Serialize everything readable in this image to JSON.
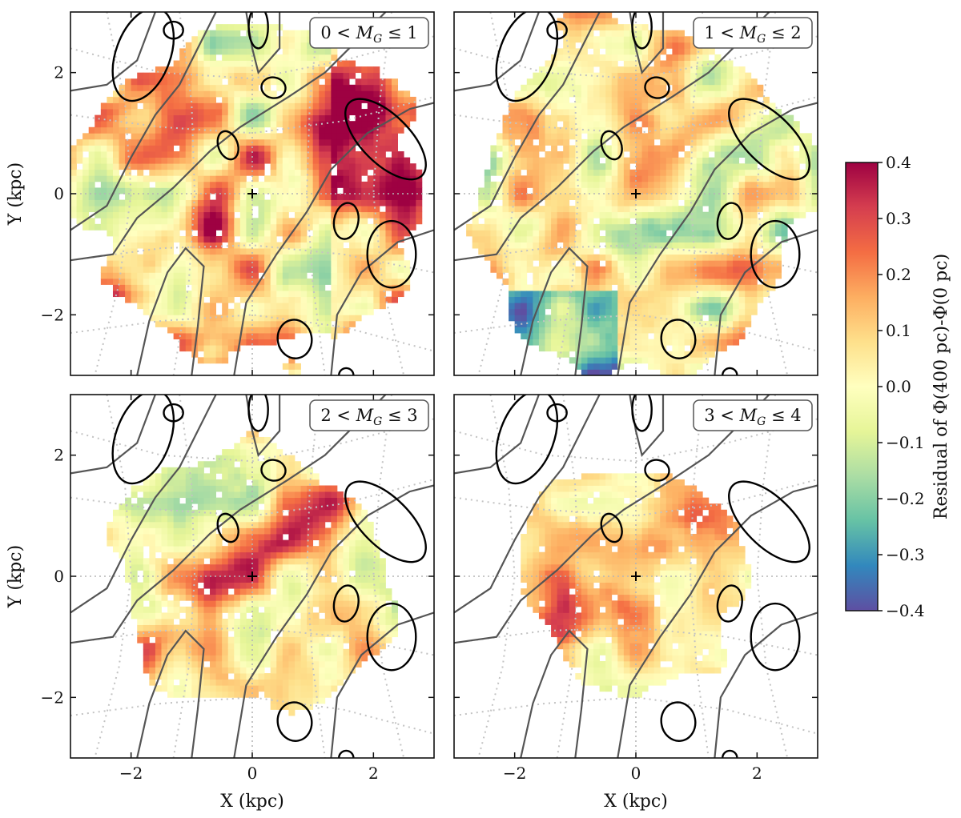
{
  "chart_data": {
    "type": "heatmap",
    "panels": [
      {
        "id": "p1",
        "label_left": "0 < ",
        "label_mid": "M",
        "label_sub": "G",
        "label_right": " ≤ 1"
      },
      {
        "id": "p2",
        "label_left": "1 < ",
        "label_mid": "M",
        "label_sub": "G",
        "label_right": " ≤ 2"
      },
      {
        "id": "p3",
        "label_left": "2 < ",
        "label_mid": "M",
        "label_sub": "G",
        "label_right": " ≤ 3"
      },
      {
        "id": "p4",
        "label_left": "3 < ",
        "label_mid": "M",
        "label_sub": "G",
        "label_right": " ≤ 4"
      }
    ],
    "xlabel": "X (kpc)",
    "ylabel": "Y (kpc)",
    "xlim": [
      -3,
      3
    ],
    "ylim": [
      -3,
      3
    ],
    "xticks": [
      -2,
      0,
      2
    ],
    "yticks": [
      -2,
      0,
      2
    ],
    "xtick_labels": [
      "−2",
      "0",
      "2"
    ],
    "ytick_labels": [
      "−2",
      "0",
      "2"
    ],
    "sun_marker": {
      "x": 0,
      "y": 0,
      "symbol": "+"
    },
    "colorbar": {
      "label": "Residual of Φ(400 pc)-Φ(0 pc)",
      "range": [
        -0.4,
        0.4
      ],
      "ticks": [
        0.4,
        0.3,
        0.2,
        0.1,
        0.0,
        -0.1,
        -0.2,
        -0.3,
        -0.4
      ],
      "tick_labels": [
        "0.4",
        "0.3",
        "0.2",
        "0.1",
        "0.0",
        "−0.1",
        "−0.2",
        "−0.3",
        "−0.4"
      ],
      "colormap": "Spectral_r",
      "colors": [
        "#5e4fa2",
        "#3288bd",
        "#66c2a5",
        "#abdda4",
        "#e6f598",
        "#ffffbf",
        "#fee08b",
        "#fdae61",
        "#f46d43",
        "#d53e4f",
        "#9e0142"
      ]
    },
    "colors": {
      "high_density_contour": "#000000",
      "low_density_contour": "#555555",
      "coordinate_grid": "#c3c3c3"
    }
  }
}
